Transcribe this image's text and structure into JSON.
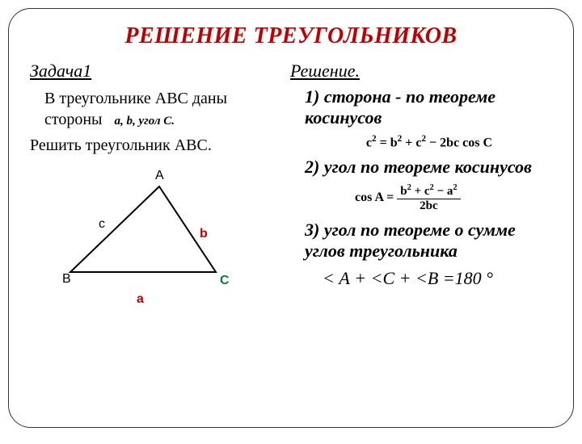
{
  "title": "РЕШЕНИЕ ТРЕУГОЛЬНИКОВ",
  "left": {
    "task_label": "Задача1",
    "task_line1": "В треугольнике АВС даны стороны",
    "given_math": "a, b, угол C.",
    "task_solve": "Решить треугольник АВС."
  },
  "right": {
    "solution_label": "Решение.",
    "step1": "1) сторона  - по теореме косинусов",
    "formula1_html": "c<sup>2</sup> = b<sup>2</sup> + c<sup>2</sup> − 2bc cos <b>C</b>",
    "step2": "2) угол по теореме косинусов",
    "formula2_lhs": "cos A =",
    "formula2_num": "b<sup>2</sup> + c<sup>2</sup> − a<sup>2</sup>",
    "formula2_den": "2bc",
    "step3": "3) угол по теореме  о сумме углов треугольника",
    "angle_sum": "< А + <С + <В =180 °"
  },
  "triangle": {
    "vertices": {
      "A": [
        160,
        24
      ],
      "B": [
        50,
        130
      ],
      "C": [
        230,
        130
      ]
    },
    "labels": {
      "A": "A",
      "B": "B",
      "C": "C",
      "a": "a",
      "b": "b",
      "c": "c"
    },
    "stroke": "#000000",
    "stroke_width": 2,
    "label_colors": {
      "A": "#000000",
      "B": "#000000",
      "C": "#00863d",
      "a": "#c00000",
      "b": "#c00000",
      "c": "#000000"
    },
    "label_font": "Arial",
    "label_size_pt": 12
  },
  "colors": {
    "title": "#c00000",
    "text": "#000000",
    "border": "#333333",
    "background": "#ffffff"
  },
  "typography": {
    "title_size_pt": 21,
    "body_size_pt": 15,
    "step_size_pt": 16,
    "formula_size_pt": 12
  }
}
